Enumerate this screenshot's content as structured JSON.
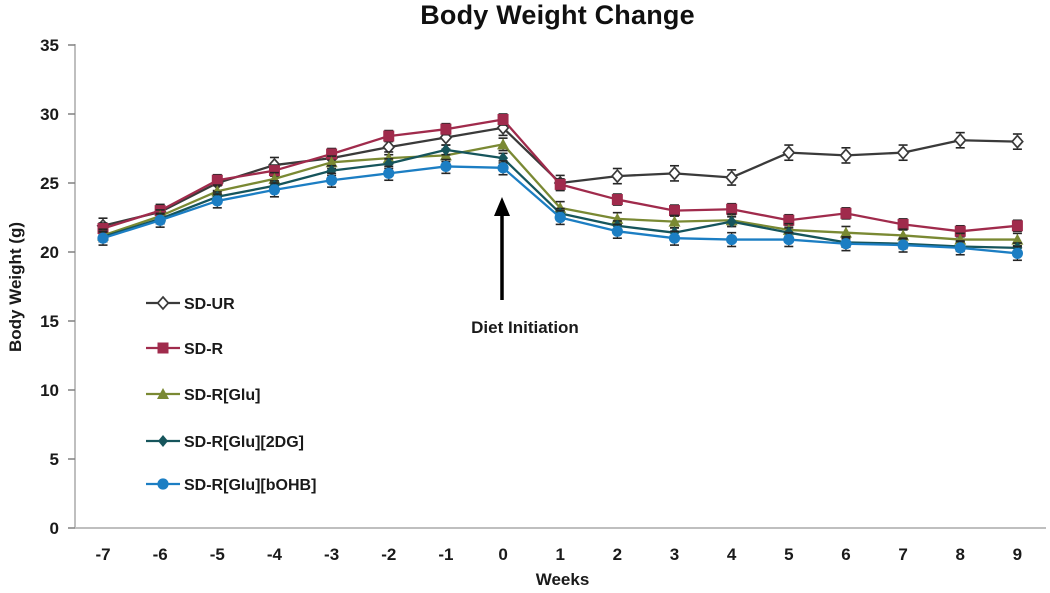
{
  "title": "Body Weight Change",
  "y_axis": {
    "label": "Body Weight (g)",
    "ticks": [
      0,
      5,
      10,
      15,
      20,
      25,
      30,
      35
    ],
    "range": [
      0,
      35
    ]
  },
  "x_axis": {
    "label": "Weeks",
    "ticks": [
      -7,
      -6,
      -5,
      -4,
      -3,
      -2,
      -1,
      0,
      1,
      2,
      3,
      4,
      5,
      6,
      7,
      8,
      9
    ]
  },
  "annotation": {
    "text": "Diet Initiation",
    "week": 0
  },
  "chart_data": {
    "type": "line",
    "title": "Body Weight Change",
    "xlabel": "Weeks",
    "ylabel": "Body Weight (g)",
    "x": [
      -7,
      -6,
      -5,
      -4,
      -3,
      -2,
      -1,
      0,
      1,
      2,
      3,
      4,
      5,
      6,
      7,
      8,
      9
    ],
    "ylim": [
      0,
      35
    ],
    "yticks": [
      0,
      5,
      10,
      15,
      20,
      25,
      30,
      35
    ],
    "grid": false,
    "legend_position": "inside-left",
    "axis_color": "#BFBFBF",
    "tick_color": "#808080",
    "error_bar_color": "#262626",
    "annotations": [
      {
        "text": "Diet Initiation",
        "x": 0,
        "arrow": true
      }
    ],
    "series": [
      {
        "name": "SD-UR",
        "color": "#3A3A3A",
        "marker": "open-diamond",
        "marker_fill": "#ffffff",
        "error": 0.55,
        "values": [
          21.9,
          22.9,
          25.0,
          26.3,
          26.8,
          27.6,
          28.3,
          29.0,
          25.0,
          25.5,
          25.7,
          25.4,
          27.2,
          27.0,
          27.2,
          28.1,
          28.0
        ]
      },
      {
        "name": "SD-R",
        "color": "#A02B4C",
        "marker": "square",
        "error": 0.4,
        "values": [
          21.7,
          23.0,
          25.2,
          25.9,
          27.1,
          28.4,
          28.9,
          29.6,
          24.9,
          23.8,
          23.0,
          23.1,
          22.3,
          22.8,
          22.0,
          21.5,
          21.9
        ]
      },
      {
        "name": "SD-R[Glu]",
        "color": "#7A8933",
        "marker": "triangle",
        "error": 0.45,
        "values": [
          21.2,
          22.6,
          24.4,
          25.3,
          26.5,
          26.8,
          27.0,
          27.8,
          23.2,
          22.4,
          22.2,
          22.3,
          21.6,
          21.4,
          21.2,
          20.9,
          20.9
        ]
      },
      {
        "name": "SD-R[Glu][2DG]",
        "color": "#16555C",
        "marker": "diamond",
        "error": 0.35,
        "values": [
          21.1,
          22.4,
          24.0,
          24.8,
          25.9,
          26.4,
          27.4,
          26.8,
          22.8,
          21.9,
          21.4,
          22.2,
          21.4,
          20.7,
          20.6,
          20.4,
          20.3
        ]
      },
      {
        "name": "SD-R[Glu][bOHB]",
        "color": "#1C7EC3",
        "marker": "circle",
        "error": 0.5,
        "values": [
          21.0,
          22.3,
          23.7,
          24.5,
          25.2,
          25.7,
          26.2,
          26.1,
          22.5,
          21.5,
          21.0,
          20.9,
          20.9,
          20.6,
          20.5,
          20.3,
          19.9
        ]
      }
    ]
  }
}
